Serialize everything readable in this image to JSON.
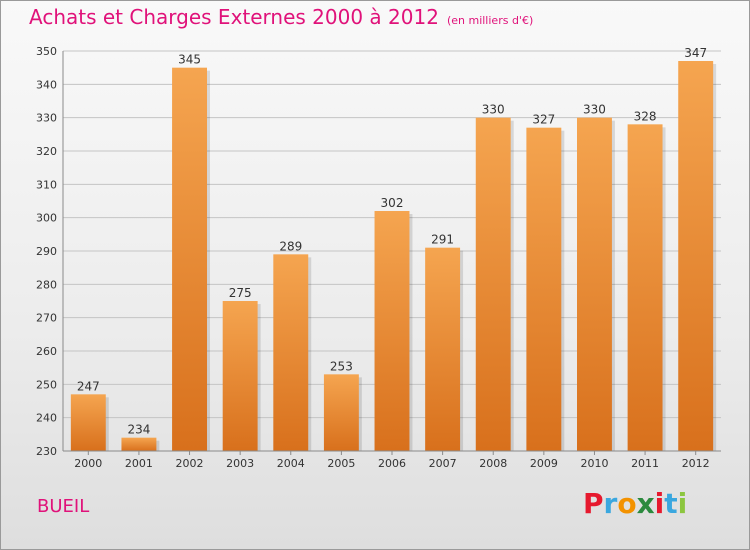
{
  "header": {
    "title": "Achats et Charges Externes 2000 à 2012",
    "unit": "(en milliers d'€)"
  },
  "footer": {
    "commune": "BUEIL",
    "logo_text": "Proxiti",
    "logo_colors": [
      "#e6192e",
      "#3aa7df",
      "#f39200",
      "#2b8a3e",
      "#e6192e",
      "#3aa7df",
      "#8cc63f"
    ]
  },
  "colors": {
    "bar_top": "#f5a550",
    "bar_bottom": "#d8701c",
    "accent": "#e0127a",
    "grid": "#c4c4c4",
    "axis": "#8a8a8a",
    "text": "#333333"
  },
  "chart_data": {
    "type": "bar",
    "categories": [
      "2000",
      "2001",
      "2002",
      "2003",
      "2004",
      "2005",
      "2006",
      "2007",
      "2008",
      "2009",
      "2010",
      "2011",
      "2012"
    ],
    "values": [
      247,
      234,
      345,
      275,
      289,
      253,
      302,
      291,
      330,
      327,
      330,
      328,
      347
    ],
    "title": "Achats et Charges Externes 2000 à 2012",
    "subtitle": "(en milliers d'€)",
    "xlabel": "",
    "ylabel": "",
    "ylim": [
      230,
      350
    ],
    "yticks": [
      230,
      240,
      250,
      260,
      270,
      280,
      290,
      300,
      310,
      320,
      330,
      340,
      350
    ],
    "grid": true,
    "data_labels": true
  }
}
